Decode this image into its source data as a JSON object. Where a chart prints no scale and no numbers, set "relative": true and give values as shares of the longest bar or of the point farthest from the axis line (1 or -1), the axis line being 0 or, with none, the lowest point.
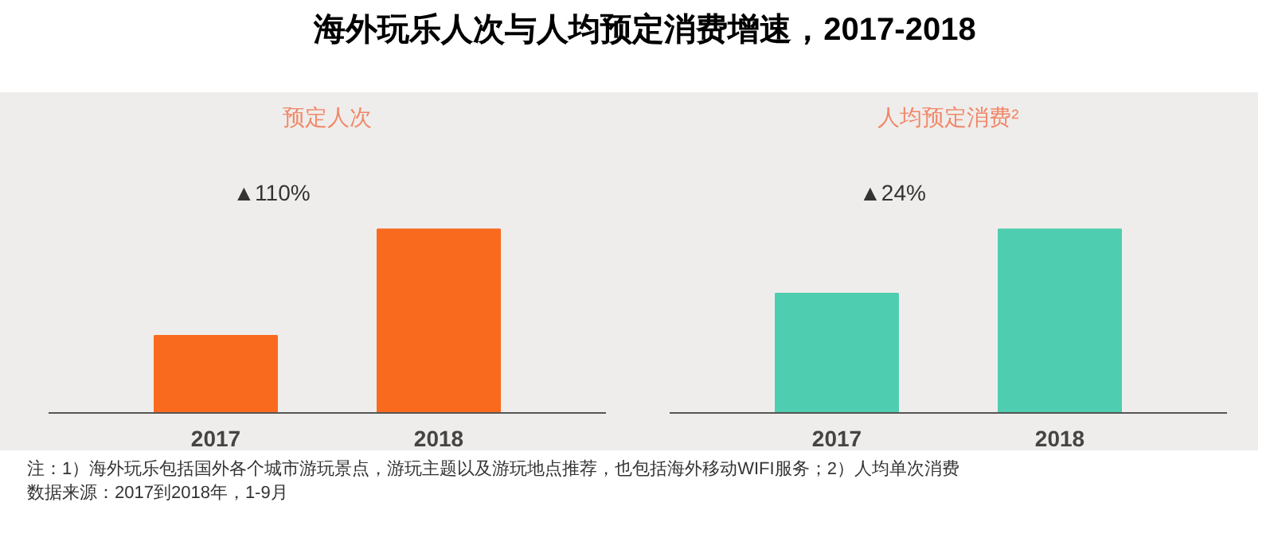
{
  "chart_data": [
    {
      "type": "bar",
      "title": "预定人次",
      "categories": [
        "2017",
        "2018"
      ],
      "values": [
        0.42,
        1
      ],
      "relative": true,
      "color": "#fa6a1e",
      "annotations": [
        "▲110%"
      ]
    },
    {
      "type": "bar",
      "title": "人均预定消费²",
      "categories": [
        "2017",
        "2018"
      ],
      "values": [
        0.65,
        1
      ],
      "relative": true,
      "color": "#4fcdb0",
      "annotations": [
        "▲24%"
      ]
    },
    {
      "type": "other",
      "title": "海外玩乐人次与人均预定消费增速，2017-2018",
      "annotations": [
        "注：1）海外玩乐包括国外各个城市游玩景点，游玩主题以及游玩地点推荐，也包括海外移动WIFI服务；2）人均单次消费",
        "数据来源：2017到2018年，1-9月"
      ]
    }
  ]
}
